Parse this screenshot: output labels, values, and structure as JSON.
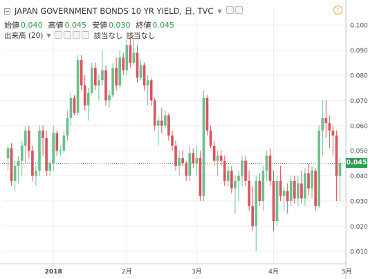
{
  "header": {
    "title": "JAPAN GOVERNMENT BONDS 10 YR YIELD, 日, TVC",
    "ohlc": [
      {
        "label": "始値",
        "value": "0.040"
      },
      {
        "label": "高値",
        "value": "0.045"
      },
      {
        "label": "安値",
        "value": "0.030"
      },
      {
        "label": "終値",
        "value": "0.045"
      }
    ],
    "volume_label": "出来高 (20)",
    "na1": "該当なし",
    "na2": "該当なし",
    "warning_icon": "!"
  },
  "colors": {
    "up": "#6cbf8c",
    "down": "#d9545d",
    "grid": "#eeeeee",
    "axis": "#cccccc",
    "last": "#2e9a4d"
  },
  "last_price_label": "0.045",
  "chart_data": {
    "type": "candlestick",
    "ylim": [
      0.005,
      0.105
    ],
    "y_ticks": [
      "0.010",
      "0.020",
      "0.030",
      "0.040",
      "0.050",
      "0.060",
      "0.070",
      "0.080",
      "0.090",
      "0.100"
    ],
    "x_ticks": [
      {
        "index": 13,
        "label": "2018"
      },
      {
        "index": 34,
        "label": "2月"
      },
      {
        "index": 54,
        "label": "3月"
      },
      {
        "index": 76,
        "label": "4月"
      },
      {
        "index": 97,
        "label": "5月"
      }
    ],
    "last_value": 0.045,
    "candles": [
      [
        0.047,
        0.052,
        0.042,
        0.051
      ],
      [
        0.051,
        0.053,
        0.036,
        0.038
      ],
      [
        0.038,
        0.046,
        0.034,
        0.044
      ],
      [
        0.044,
        0.048,
        0.037,
        0.046
      ],
      [
        0.046,
        0.054,
        0.04,
        0.052
      ],
      [
        0.052,
        0.06,
        0.045,
        0.058
      ],
      [
        0.058,
        0.06,
        0.047,
        0.05
      ],
      [
        0.05,
        0.052,
        0.038,
        0.04
      ],
      [
        0.04,
        0.044,
        0.036,
        0.042
      ],
      [
        0.042,
        0.06,
        0.04,
        0.058
      ],
      [
        0.058,
        0.06,
        0.048,
        0.055
      ],
      [
        0.055,
        0.058,
        0.04,
        0.042
      ],
      [
        0.042,
        0.046,
        0.04,
        0.045
      ],
      [
        0.045,
        0.06,
        0.042,
        0.057
      ],
      [
        0.057,
        0.058,
        0.048,
        0.05
      ],
      [
        0.05,
        0.052,
        0.048,
        0.05
      ],
      [
        0.05,
        0.058,
        0.049,
        0.056
      ],
      [
        0.056,
        0.066,
        0.054,
        0.063
      ],
      [
        0.063,
        0.073,
        0.06,
        0.071
      ],
      [
        0.071,
        0.072,
        0.064,
        0.065
      ],
      [
        0.065,
        0.088,
        0.064,
        0.086
      ],
      [
        0.086,
        0.088,
        0.074,
        0.076
      ],
      [
        0.076,
        0.08,
        0.066,
        0.068
      ],
      [
        0.068,
        0.075,
        0.062,
        0.073
      ],
      [
        0.073,
        0.085,
        0.072,
        0.083
      ],
      [
        0.083,
        0.085,
        0.074,
        0.076
      ],
      [
        0.076,
        0.08,
        0.07,
        0.078
      ],
      [
        0.078,
        0.09,
        0.076,
        0.082
      ],
      [
        0.082,
        0.084,
        0.068,
        0.07
      ],
      [
        0.07,
        0.074,
        0.067,
        0.072
      ],
      [
        0.072,
        0.085,
        0.071,
        0.083
      ],
      [
        0.083,
        0.087,
        0.074,
        0.076
      ],
      [
        0.076,
        0.09,
        0.075,
        0.087
      ],
      [
        0.087,
        0.089,
        0.08,
        0.082
      ],
      [
        0.082,
        0.094,
        0.08,
        0.092
      ],
      [
        0.092,
        0.095,
        0.083,
        0.085
      ],
      [
        0.085,
        0.096,
        0.084,
        0.089
      ],
      [
        0.089,
        0.092,
        0.077,
        0.079
      ],
      [
        0.079,
        0.086,
        0.078,
        0.084
      ],
      [
        0.084,
        0.085,
        0.074,
        0.076
      ],
      [
        0.076,
        0.08,
        0.068,
        0.078
      ],
      [
        0.078,
        0.079,
        0.068,
        0.07
      ],
      [
        0.07,
        0.071,
        0.058,
        0.06
      ],
      [
        0.06,
        0.064,
        0.052,
        0.062
      ],
      [
        0.062,
        0.067,
        0.057,
        0.06
      ],
      [
        0.06,
        0.066,
        0.059,
        0.064
      ],
      [
        0.064,
        0.065,
        0.054,
        0.056
      ],
      [
        0.056,
        0.058,
        0.05,
        0.052
      ],
      [
        0.052,
        0.054,
        0.042,
        0.044
      ],
      [
        0.044,
        0.05,
        0.04,
        0.047
      ],
      [
        0.047,
        0.05,
        0.044,
        0.045
      ],
      [
        0.045,
        0.046,
        0.038,
        0.04
      ],
      [
        0.04,
        0.052,
        0.038,
        0.049
      ],
      [
        0.049,
        0.051,
        0.043,
        0.045
      ],
      [
        0.045,
        0.052,
        0.04,
        0.047
      ],
      [
        0.047,
        0.05,
        0.03,
        0.032
      ],
      [
        0.032,
        0.074,
        0.03,
        0.071
      ],
      [
        0.071,
        0.072,
        0.056,
        0.058
      ],
      [
        0.058,
        0.06,
        0.051,
        0.052
      ],
      [
        0.052,
        0.054,
        0.044,
        0.046
      ],
      [
        0.046,
        0.05,
        0.04,
        0.048
      ],
      [
        0.048,
        0.05,
        0.044,
        0.046
      ],
      [
        0.046,
        0.048,
        0.036,
        0.038
      ],
      [
        0.038,
        0.044,
        0.036,
        0.042
      ],
      [
        0.042,
        0.044,
        0.033,
        0.035
      ],
      [
        0.035,
        0.04,
        0.025,
        0.038
      ],
      [
        0.038,
        0.042,
        0.03,
        0.04
      ],
      [
        0.04,
        0.048,
        0.036,
        0.046
      ],
      [
        0.046,
        0.048,
        0.036,
        0.038
      ],
      [
        0.038,
        0.042,
        0.026,
        0.028
      ],
      [
        0.028,
        0.036,
        0.018,
        0.02
      ],
      [
        0.02,
        0.04,
        0.01,
        0.038
      ],
      [
        0.038,
        0.041,
        0.028,
        0.03
      ],
      [
        0.03,
        0.044,
        0.026,
        0.042
      ],
      [
        0.042,
        0.05,
        0.038,
        0.048
      ],
      [
        0.048,
        0.051,
        0.036,
        0.038
      ],
      [
        0.038,
        0.042,
        0.018,
        0.022
      ],
      [
        0.022,
        0.04,
        0.02,
        0.038
      ],
      [
        0.038,
        0.044,
        0.03,
        0.032
      ],
      [
        0.032,
        0.036,
        0.026,
        0.034
      ],
      [
        0.034,
        0.037,
        0.025,
        0.03
      ],
      [
        0.03,
        0.04,
        0.028,
        0.038
      ],
      [
        0.038,
        0.04,
        0.029,
        0.031
      ],
      [
        0.031,
        0.04,
        0.028,
        0.037
      ],
      [
        0.037,
        0.042,
        0.029,
        0.031
      ],
      [
        0.031,
        0.043,
        0.028,
        0.041
      ],
      [
        0.041,
        0.045,
        0.032,
        0.035
      ],
      [
        0.035,
        0.044,
        0.031,
        0.042
      ],
      [
        0.042,
        0.043,
        0.026,
        0.028
      ],
      [
        0.028,
        0.06,
        0.027,
        0.058
      ],
      [
        0.058,
        0.07,
        0.048,
        0.063
      ],
      [
        0.063,
        0.07,
        0.055,
        0.061
      ],
      [
        0.061,
        0.064,
        0.051,
        0.058
      ],
      [
        0.058,
        0.06,
        0.048,
        0.056
      ],
      [
        0.056,
        0.058,
        0.03,
        0.04
      ],
      [
        0.04,
        0.047,
        0.03,
        0.045
      ]
    ]
  }
}
